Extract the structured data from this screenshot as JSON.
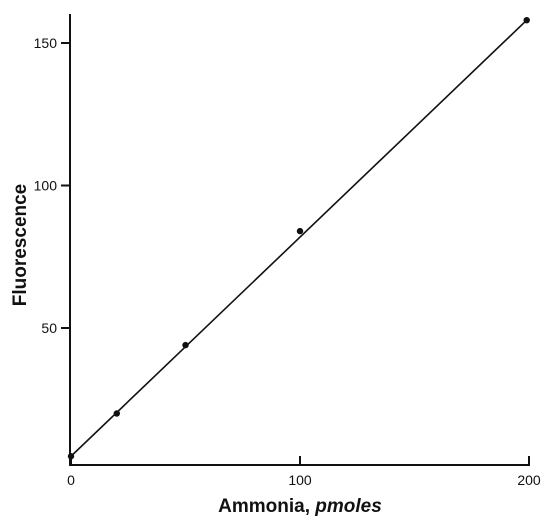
{
  "chart_data": {
    "type": "scatter",
    "title": "",
    "xlabel": {
      "main": "Ammonia, ",
      "unit": "pmoles"
    },
    "ylabel": "Fluorescence",
    "xlim": [
      0,
      200
    ],
    "ylim": [
      0,
      155
    ],
    "x_ticks": [
      0,
      100,
      200
    ],
    "y_ticks": [
      50,
      100,
      150
    ],
    "grid": false,
    "series": [
      {
        "points": [
          {
            "x": 0,
            "y": 5
          },
          {
            "x": 20,
            "y": 20
          },
          {
            "x": 50,
            "y": 44
          },
          {
            "x": 100,
            "y": 84
          },
          {
            "x": 199,
            "y": 158
          }
        ]
      }
    ],
    "fit_line": {
      "x": [
        0,
        199
      ],
      "y": [
        5,
        158
      ]
    }
  }
}
